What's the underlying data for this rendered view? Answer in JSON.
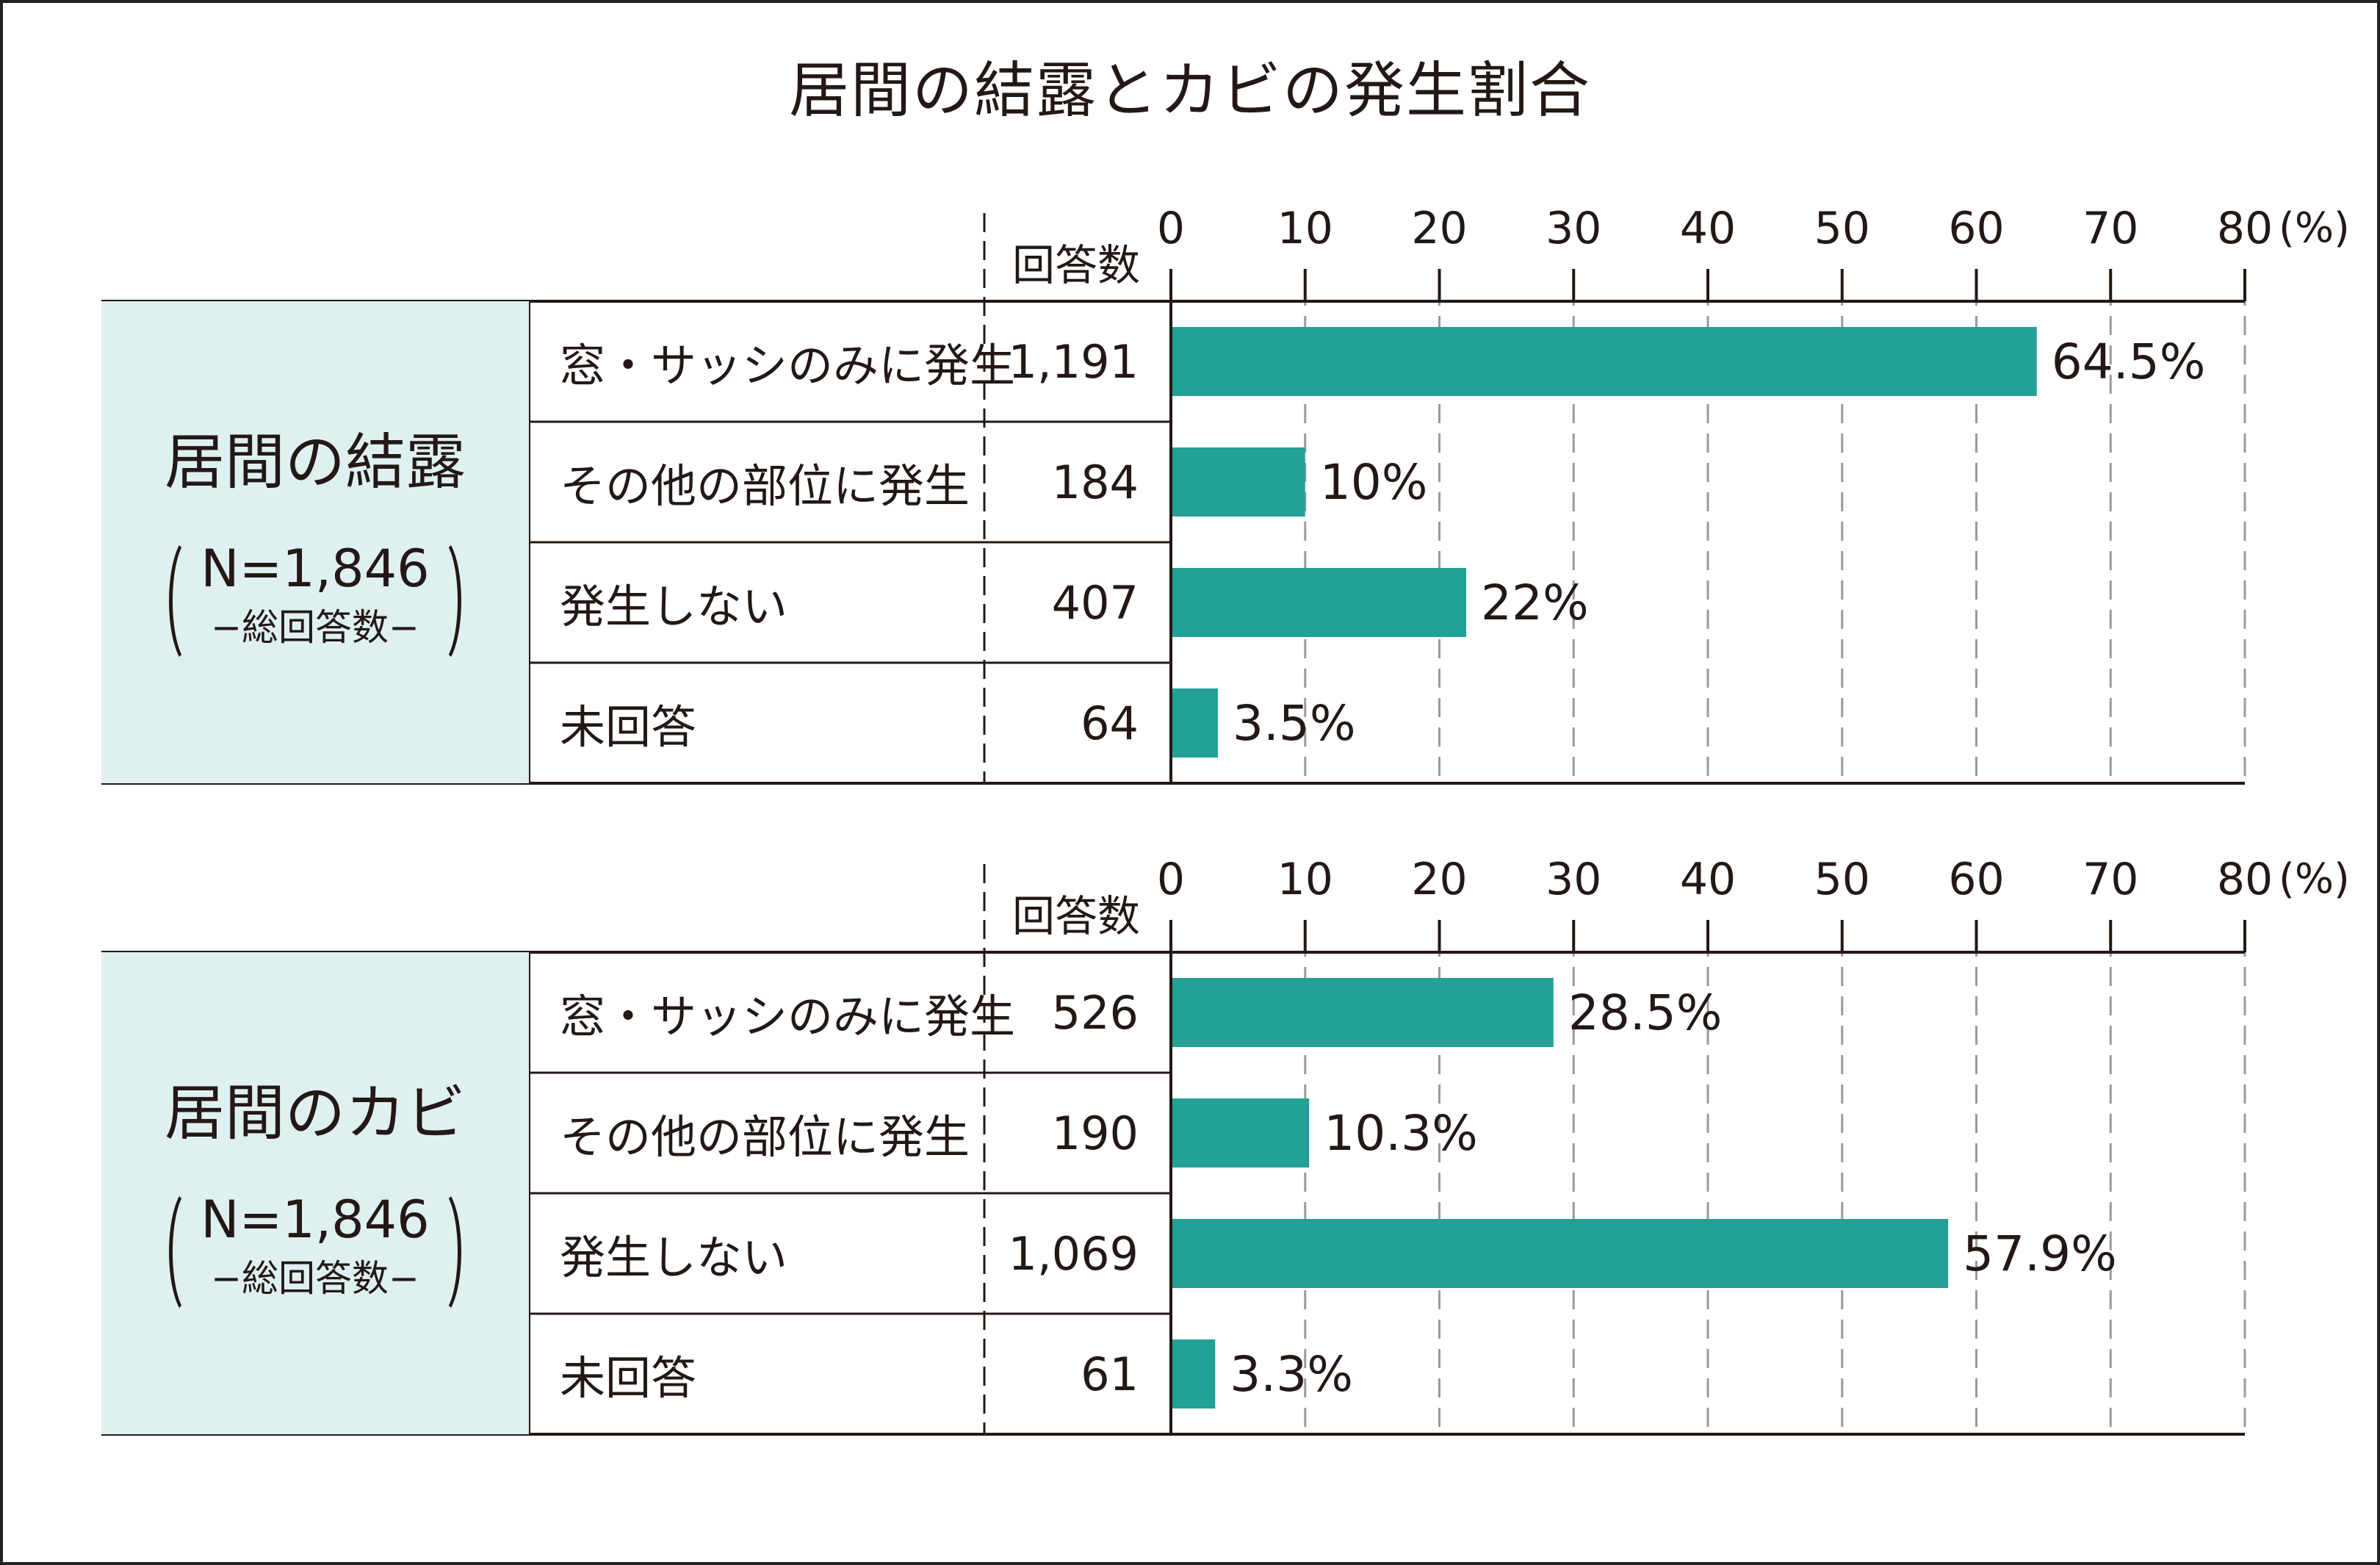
{
  "title": "居間の結露とカビの発生割合",
  "colors": {
    "bar": "#23a197",
    "panel": "#dff0f1",
    "line": "#231815",
    "grid": "#9a9a9a"
  },
  "count_header": "回答数",
  "unit": "(%)",
  "chart_data": [
    {
      "type": "bar",
      "orientation": "horizontal",
      "title": "居間の結露",
      "n_label": "N=1,846",
      "n_sub": "−総回答数−",
      "xlim": [
        0,
        80
      ],
      "ticks": [
        "0",
        "10",
        "20",
        "30",
        "40",
        "50",
        "60",
        "70",
        "80"
      ],
      "categories": [
        "窓・サッシのみに発生",
        "その他の部位に発生",
        "発生しない",
        "未回答"
      ],
      "counts": [
        "1,191",
        "184",
        "407",
        "64"
      ],
      "values": [
        64.5,
        10,
        22,
        3.5
      ],
      "value_labels": [
        "64.5%",
        "10%",
        "22%",
        "3.5%"
      ]
    },
    {
      "type": "bar",
      "orientation": "horizontal",
      "title": "居間のカビ",
      "n_label": "N=1,846",
      "n_sub": "−総回答数−",
      "xlim": [
        0,
        80
      ],
      "ticks": [
        "0",
        "10",
        "20",
        "30",
        "40",
        "50",
        "60",
        "70",
        "80"
      ],
      "categories": [
        "窓・サッシのみに発生",
        "その他の部位に発生",
        "発生しない",
        "未回答"
      ],
      "counts": [
        "526",
        "190",
        "1,069",
        "61"
      ],
      "values": [
        28.5,
        10.3,
        57.9,
        3.3
      ],
      "value_labels": [
        "28.5%",
        "10.3%",
        "57.9%",
        "3.3%"
      ]
    }
  ]
}
